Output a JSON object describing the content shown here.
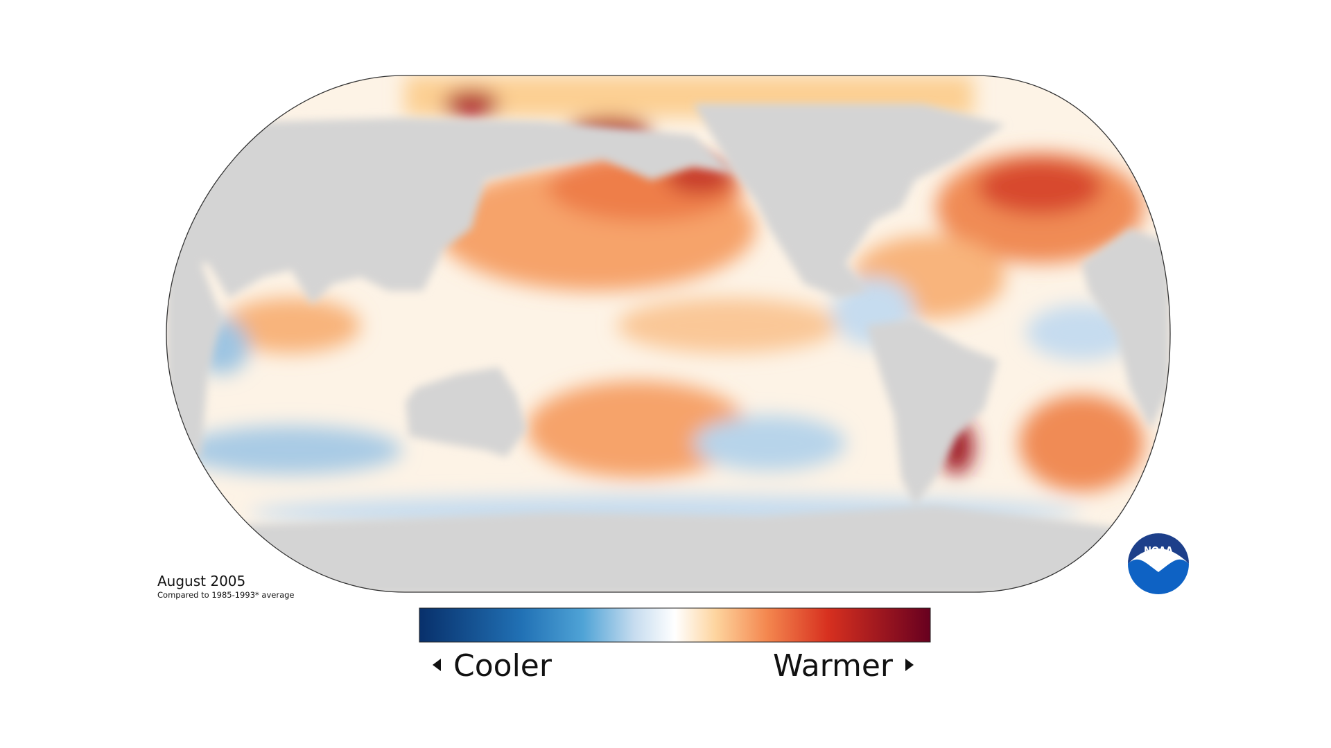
{
  "caption": {
    "title": "August 2005",
    "subtitle": "Compared to 1985-1993* average"
  },
  "legend": {
    "low_label": "Cooler",
    "high_label": "Warmer"
  },
  "logo": {
    "text": "NOAA"
  }
}
